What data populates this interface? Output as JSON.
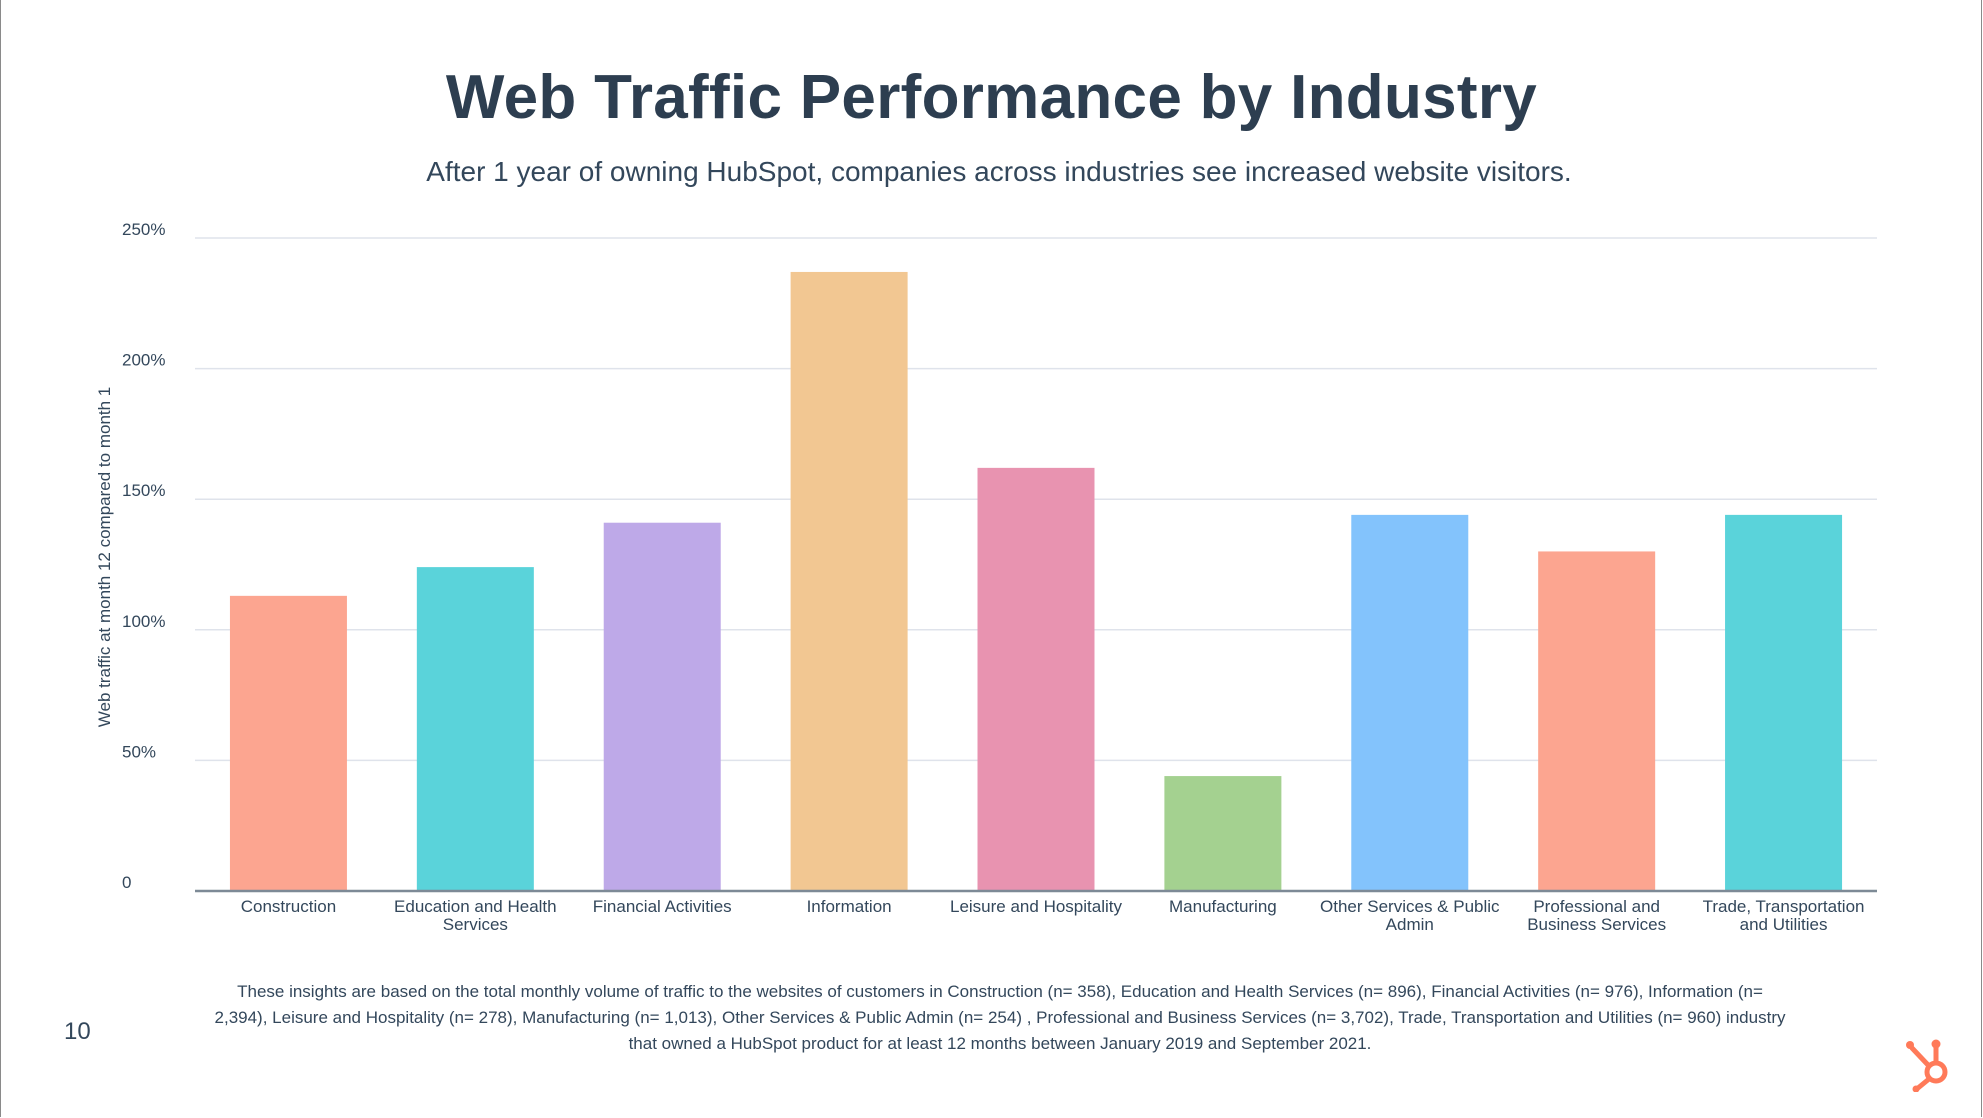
{
  "page": {
    "title": "Web Traffic Performance by Industry",
    "subtitle": "After 1 year of owning HubSpot, companies across industries see increased website visitors.",
    "footnote": "These insights are based on the total monthly volume of traffic to the websites of  customers in Construction (n= 358), Education and Health Services (n= 896), Financial Activities (n= 976), Information (n= 2,394), Leisure and Hospitality (n= 278), Manufacturing (n= 1,013), Other Services & Public Admin (n= 254) , Professional and Business Services (n= 3,702), Trade, Transportation and Utilities (n= 960) industry that owned a HubSpot product for at least 12 months between January 2019 and September 2021.",
    "page_number": "10",
    "logo_icon": "hubspot-sprocket-icon",
    "brand_color": "#ff7a59"
  },
  "chart_data": {
    "type": "bar",
    "ylabel": "Web traffic at month 12 compared to month 1",
    "xlabel": "",
    "ylim": [
      0,
      250
    ],
    "yticks": [
      0,
      50,
      100,
      150,
      200,
      250
    ],
    "ytick_labels": [
      "0",
      "50%",
      "100%",
      "150%",
      "200%",
      "250%"
    ],
    "grid": true,
    "categories": [
      "Construction",
      "Education and Health Services",
      "Financial Activities",
      "Information",
      "Leisure and Hospitality",
      "Manufacturing",
      "Other Services & Public Admin",
      "Professional and Business Services",
      "Trade, Transportation and Utilities"
    ],
    "category_label_lines": [
      [
        "Construction"
      ],
      [
        "Education and Health",
        "Services"
      ],
      [
        "Financial Activities"
      ],
      [
        "Information"
      ],
      [
        "Leisure and Hospitality"
      ],
      [
        "Manufacturing"
      ],
      [
        "Other Services & Public",
        "Admin"
      ],
      [
        "Professional and",
        "Business Services"
      ],
      [
        "Trade, Transportation",
        "and Utilities"
      ]
    ],
    "values": [
      113,
      124,
      141,
      237,
      162,
      44,
      144,
      130,
      144
    ],
    "colors": [
      "#fca590",
      "#5ad3da",
      "#bea9e8",
      "#f2c792",
      "#e893b0",
      "#a4d190",
      "#83c3fc",
      "#fca590",
      "#5ad3da"
    ],
    "axis_color": "#7d8a96",
    "grid_color": "#dfe3eb"
  }
}
